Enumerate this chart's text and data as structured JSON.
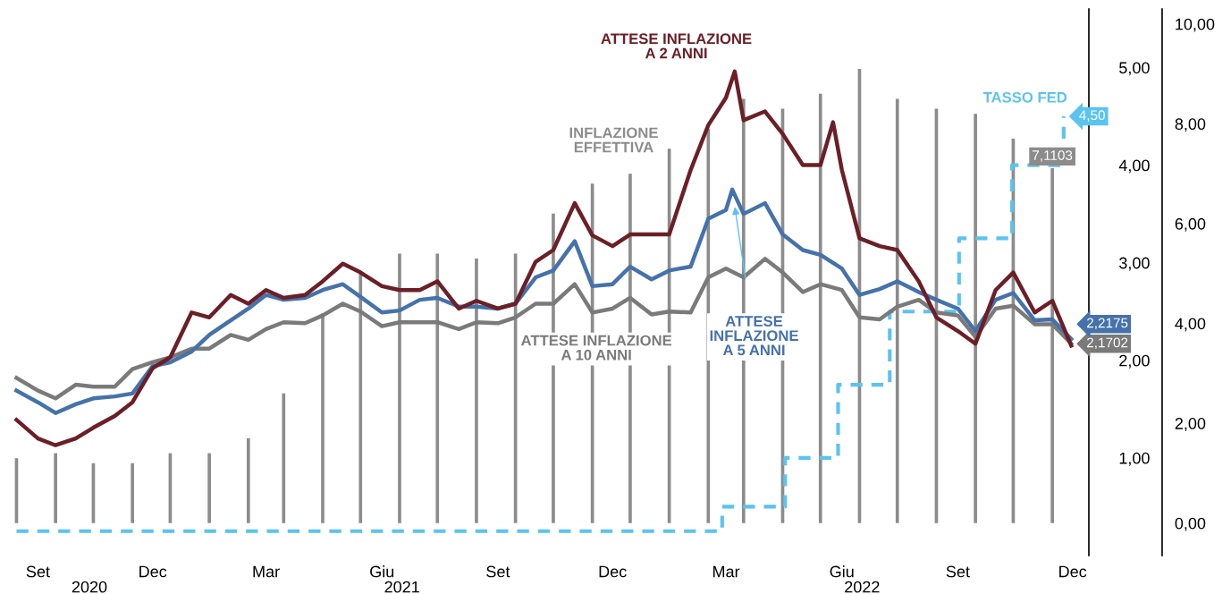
{
  "chart_data": {
    "type": "line",
    "xlim": [
      "2020-08-09",
      "2022-12-14"
    ],
    "xticks": [
      {
        "value": "2020-09-01",
        "label": "Set"
      },
      {
        "value": "2020-12-01",
        "label": "Dec"
      },
      {
        "value": "2021-03-01",
        "label": "Mar"
      },
      {
        "value": "2021-06-01",
        "label": "Giu"
      },
      {
        "value": "2021-09-01",
        "label": "Set"
      },
      {
        "value": "2021-12-01",
        "label": "Dec"
      },
      {
        "value": "2022-03-01",
        "label": "Mar"
      },
      {
        "value": "2022-06-01",
        "label": "Giu"
      },
      {
        "value": "2022-09-01",
        "label": "Set"
      },
      {
        "value": "2022-12-01",
        "label": "Dec"
      }
    ],
    "ylim": [
      0,
      5.6
    ],
    "yticks": [
      {
        "value": 1,
        "label": "1,00"
      },
      {
        "value": 2,
        "label": "2,00"
      },
      {
        "value": 3,
        "label": "3,00"
      },
      {
        "value": 4,
        "label": "4,00"
      },
      {
        "value": 5,
        "label": "5,00"
      }
    ],
    "y2lim": [
      -0.65,
      10.3
    ],
    "y2ticks": [
      {
        "value": 0,
        "label": "0,00"
      },
      {
        "value": 2,
        "label": "2,00"
      },
      {
        "value": 4,
        "label": "4,00"
      },
      {
        "value": 6,
        "label": "6,00"
      },
      {
        "value": 8,
        "label": "8,00"
      },
      {
        "value": 10,
        "label": "10,00"
      }
    ],
    "annotations": [
      "2020",
      "2021",
      "2022"
    ],
    "series": [
      {
        "name": "INFLAZIONE\nEFFETTIVA",
        "type": "bar",
        "axis": "y2",
        "color": "#8c8c8c",
        "x": [
          "2020-08-15",
          "2020-09-15",
          "2020-10-15",
          "2020-11-15",
          "2020-12-15",
          "2021-01-15",
          "2021-02-15",
          "2021-03-15",
          "2021-04-15",
          "2021-05-15",
          "2021-06-15",
          "2021-07-15",
          "2021-08-15",
          "2021-09-15",
          "2021-10-15",
          "2021-11-15",
          "2021-12-15",
          "2022-01-15",
          "2022-02-15",
          "2022-03-15",
          "2022-04-15",
          "2022-05-15",
          "2022-06-15",
          "2022-07-15",
          "2022-08-15",
          "2022-09-15",
          "2022-10-15",
          "2022-11-15"
        ],
        "values": [
          1.3,
          1.4,
          1.2,
          1.2,
          1.4,
          1.4,
          1.7,
          2.6,
          4.2,
          5.0,
          5.4,
          5.4,
          5.3,
          5.4,
          6.2,
          6.8,
          7.0,
          7.5,
          7.9,
          8.5,
          8.3,
          8.6,
          9.1,
          8.5,
          8.3,
          8.2,
          7.7,
          7.1103
        ],
        "value_labels": [
          null,
          null,
          null,
          null,
          null,
          null,
          null,
          null,
          null,
          null,
          null,
          null,
          null,
          null,
          null,
          null,
          null,
          null,
          null,
          null,
          null,
          null,
          null,
          null,
          null,
          null,
          null,
          "7,1103"
        ]
      },
      {
        "name": "TASSO FED",
        "type": "step",
        "axis": "y",
        "color": "#5bc4ee",
        "line_style": "dashed",
        "x": [
          "2020-08-15",
          "2022-02-26",
          "2022-04-17",
          "2022-05-29",
          "2022-07-09",
          "2022-09-02",
          "2022-10-14",
          "2022-11-24"
        ],
        "values": [
          0.25,
          0.5,
          1.0,
          1.75,
          2.5,
          3.25,
          4.0,
          4.5
        ],
        "value_labels": [
          null,
          null,
          null,
          null,
          null,
          null,
          null,
          "4,50"
        ]
      },
      {
        "name": "ATTESE INFLAZIONE\nA 10 ANNI",
        "axis": "y",
        "color": "#7a7a7a",
        "x": [
          "2020-08-15",
          "2020-09-01",
          "2020-09-15",
          "2020-10-01",
          "2020-10-15",
          "2020-11-01",
          "2020-11-15",
          "2020-12-01",
          "2020-12-15",
          "2021-01-01",
          "2021-01-15",
          "2021-02-01",
          "2021-02-15",
          "2021-03-01",
          "2021-03-15",
          "2021-04-01",
          "2021-04-15",
          "2021-05-01",
          "2021-05-15",
          "2021-06-01",
          "2021-06-15",
          "2021-07-01",
          "2021-07-15",
          "2021-08-01",
          "2021-08-15",
          "2021-09-01",
          "2021-09-15",
          "2021-10-01",
          "2021-10-15",
          "2021-11-01",
          "2021-11-15",
          "2021-12-01",
          "2021-12-15",
          "2022-01-01",
          "2022-01-15",
          "2022-02-01",
          "2022-02-15",
          "2022-03-01",
          "2022-03-15",
          "2022-04-01",
          "2022-04-15",
          "2022-05-01",
          "2022-05-15",
          "2022-06-01",
          "2022-06-15",
          "2022-07-01",
          "2022-07-15",
          "2022-08-01",
          "2022-08-15",
          "2022-09-01",
          "2022-09-15",
          "2022-10-01",
          "2022-10-15",
          "2022-11-01",
          "2022-11-15",
          "2022-11-30"
        ],
        "values": [
          1.82,
          1.69,
          1.61,
          1.75,
          1.73,
          1.73,
          1.91,
          1.98,
          2.03,
          2.12,
          2.12,
          2.26,
          2.21,
          2.32,
          2.39,
          2.38,
          2.46,
          2.58,
          2.5,
          2.35,
          2.39,
          2.39,
          2.39,
          2.32,
          2.39,
          2.38,
          2.44,
          2.58,
          2.58,
          2.78,
          2.49,
          2.53,
          2.64,
          2.47,
          2.5,
          2.49,
          2.85,
          2.94,
          2.85,
          3.04,
          2.9,
          2.7,
          2.78,
          2.72,
          2.44,
          2.42,
          2.55,
          2.62,
          2.49,
          2.46,
          2.24,
          2.53,
          2.56,
          2.37,
          2.37,
          2.1702
        ],
        "value_labels": [
          null,
          null,
          null,
          null,
          null,
          null,
          null,
          null,
          null,
          null,
          null,
          null,
          null,
          null,
          null,
          null,
          null,
          null,
          null,
          null,
          null,
          null,
          null,
          null,
          null,
          null,
          null,
          null,
          null,
          null,
          null,
          null,
          null,
          null,
          null,
          null,
          null,
          null,
          null,
          null,
          null,
          null,
          null,
          null,
          null,
          null,
          null,
          null,
          null,
          null,
          null,
          null,
          null,
          null,
          null,
          "2,1702"
        ]
      },
      {
        "name": "ATTESE\nINFLAZIONE\nA 5 ANNI",
        "axis": "y",
        "color": "#4572aa",
        "x": [
          "2020-08-15",
          "2020-09-01",
          "2020-09-15",
          "2020-10-01",
          "2020-10-15",
          "2020-11-01",
          "2020-11-15",
          "2020-12-01",
          "2020-12-15",
          "2021-01-01",
          "2021-01-15",
          "2021-02-01",
          "2021-02-15",
          "2021-03-01",
          "2021-03-15",
          "2021-04-01",
          "2021-04-15",
          "2021-05-01",
          "2021-05-15",
          "2021-06-01",
          "2021-06-15",
          "2021-07-01",
          "2021-07-15",
          "2021-08-01",
          "2021-08-15",
          "2021-09-01",
          "2021-09-15",
          "2021-10-01",
          "2021-10-15",
          "2021-11-01",
          "2021-11-15",
          "2021-12-01",
          "2021-12-15",
          "2022-01-01",
          "2022-01-15",
          "2022-02-01",
          "2022-02-15",
          "2022-03-01",
          "2022-03-06",
          "2022-03-15",
          "2022-04-01",
          "2022-04-15",
          "2022-05-01",
          "2022-05-15",
          "2022-06-01",
          "2022-06-15",
          "2022-07-01",
          "2022-07-15",
          "2022-08-01",
          "2022-08-15",
          "2022-09-01",
          "2022-09-15",
          "2022-10-01",
          "2022-10-15",
          "2022-11-01",
          "2022-11-15",
          "2022-11-30"
        ],
        "values": [
          1.69,
          1.57,
          1.46,
          1.55,
          1.61,
          1.63,
          1.66,
          1.94,
          1.98,
          2.09,
          2.26,
          2.41,
          2.53,
          2.67,
          2.62,
          2.64,
          2.72,
          2.78,
          2.65,
          2.49,
          2.51,
          2.62,
          2.64,
          2.55,
          2.55,
          2.53,
          2.58,
          2.85,
          2.92,
          3.22,
          2.76,
          2.78,
          2.96,
          2.83,
          2.92,
          2.96,
          3.45,
          3.54,
          3.75,
          3.5,
          3.61,
          3.29,
          3.13,
          3.08,
          2.94,
          2.67,
          2.73,
          2.81,
          2.7,
          2.62,
          2.53,
          2.3,
          2.62,
          2.69,
          2.41,
          2.42,
          2.2175
        ],
        "value_labels": [
          null,
          null,
          null,
          null,
          null,
          null,
          null,
          null,
          null,
          null,
          null,
          null,
          null,
          null,
          null,
          null,
          null,
          null,
          null,
          null,
          null,
          null,
          null,
          null,
          null,
          null,
          null,
          null,
          null,
          null,
          null,
          null,
          null,
          null,
          null,
          null,
          null,
          null,
          null,
          null,
          null,
          null,
          null,
          null,
          null,
          null,
          null,
          null,
          null,
          null,
          null,
          null,
          null,
          null,
          null,
          null,
          "2,2175"
        ]
      },
      {
        "name": "ATTESE INFLAZIONE\nA 2 ANNI",
        "axis": "y",
        "color": "#6b1f27",
        "x": [
          "2020-08-15",
          "2020-09-01",
          "2020-09-15",
          "2020-10-01",
          "2020-10-15",
          "2020-11-01",
          "2020-11-15",
          "2020-12-01",
          "2020-12-15",
          "2021-01-01",
          "2021-01-15",
          "2021-02-01",
          "2021-02-15",
          "2021-03-01",
          "2021-03-15",
          "2021-04-01",
          "2021-04-15",
          "2021-05-01",
          "2021-05-15",
          "2021-06-01",
          "2021-06-15",
          "2021-07-01",
          "2021-07-15",
          "2021-08-01",
          "2021-08-15",
          "2021-09-01",
          "2021-09-15",
          "2021-10-01",
          "2021-10-15",
          "2021-11-01",
          "2021-11-15",
          "2021-12-01",
          "2021-12-15",
          "2022-01-01",
          "2022-01-15",
          "2022-02-01",
          "2022-02-15",
          "2022-03-01",
          "2022-03-08",
          "2022-03-15",
          "2022-04-01",
          "2022-04-15",
          "2022-05-01",
          "2022-05-15",
          "2022-05-25",
          "2022-06-01",
          "2022-06-15",
          "2022-07-01",
          "2022-07-15",
          "2022-08-01",
          "2022-08-15",
          "2022-09-01",
          "2022-09-15",
          "2022-10-01",
          "2022-10-15",
          "2022-11-01",
          "2022-11-15",
          "2022-11-30"
        ],
        "values": [
          1.39,
          1.2,
          1.13,
          1.2,
          1.31,
          1.43,
          1.57,
          1.92,
          2.03,
          2.49,
          2.44,
          2.67,
          2.58,
          2.72,
          2.64,
          2.67,
          2.81,
          2.99,
          2.9,
          2.76,
          2.72,
          2.72,
          2.81,
          2.53,
          2.61,
          2.53,
          2.58,
          3.01,
          3.13,
          3.61,
          3.28,
          3.17,
          3.29,
          3.29,
          3.29,
          3.95,
          4.41,
          4.69,
          4.96,
          4.46,
          4.55,
          4.32,
          4.0,
          4.0,
          4.44,
          3.95,
          3.25,
          3.17,
          3.13,
          2.81,
          2.44,
          2.3,
          2.17,
          2.72,
          2.9,
          2.49,
          2.61,
          2.15
        ]
      }
    ]
  }
}
